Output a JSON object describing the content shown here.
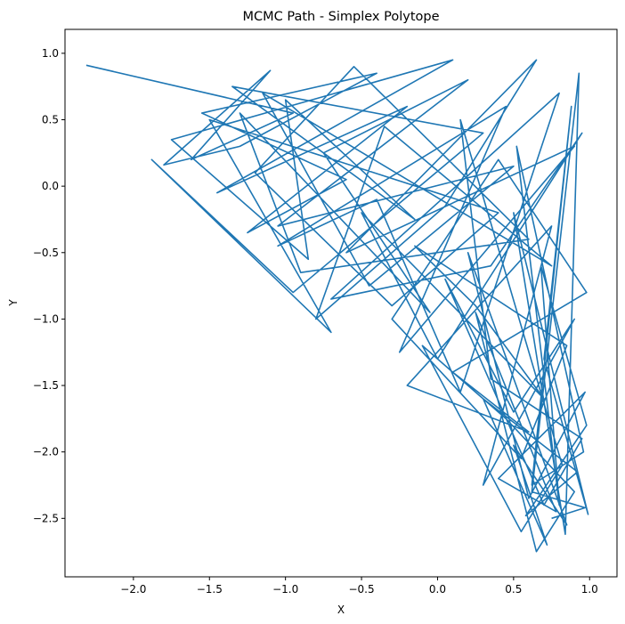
{
  "chart_data": {
    "type": "line",
    "title": "MCMC Path - Simplex Polytope",
    "xlabel": "X",
    "ylabel": "Y",
    "xlim": [
      -2.45,
      1.18
    ],
    "ylim": [
      -2.94,
      1.18
    ],
    "xticks": [
      -2.0,
      -1.5,
      -1.0,
      -0.5,
      0.0,
      0.5,
      1.0
    ],
    "xtick_labels": [
      "−2.0",
      "−1.5",
      "−1.0",
      "−0.5",
      "0.0",
      "0.5",
      "1.0"
    ],
    "yticks": [
      1.0,
      0.5,
      0.0,
      -0.5,
      -1.0,
      -1.5,
      -2.0,
      -2.5
    ],
    "ytick_labels": [
      "1.0",
      "0.5",
      "0.0",
      "−0.5",
      "−1.0",
      "−1.5",
      "−2.0",
      "−2.5"
    ],
    "grid": false,
    "series": [
      {
        "color": "#1f77b4",
        "x": [
          -2.31,
          -0.95,
          -1.62,
          -1.1,
          -1.8,
          -1.3,
          -0.4,
          -1.55,
          -0.6,
          -1.25,
          -0.2,
          -1.45,
          0.1,
          -1.75,
          -0.85,
          -1.0,
          -0.15,
          -1.35,
          0.3,
          -0.95,
          -1.88,
          -0.7,
          -1.5,
          0.4,
          -0.3,
          -1.2,
          -0.55,
          0.6,
          -0.9,
          -1.3,
          -0.05,
          -0.75,
          0.2,
          -1.05,
          0.5,
          -0.45,
          -1.15,
          0.75,
          -0.35,
          -0.8,
          0.05,
          0.65,
          -0.6,
          0.9,
          -0.25,
          0.45,
          -1.05,
          -0.4,
          0.15,
          0.8,
          -0.7,
          0.35,
          0.95,
          0.0,
          -0.5,
          0.7,
          0.25,
          -0.15,
          0.85,
          0.55,
          -0.3,
          0.4,
          0.98,
          0.1,
          0.6,
          -0.2,
          0.75,
          0.3,
          0.9,
          0.5,
          0.05,
          0.7,
          0.95,
          0.35,
          0.15,
          0.82,
          0.55,
          -0.1,
          0.45,
          0.9,
          0.65,
          0.25,
          0.78,
          0.4,
          0.97,
          0.6,
          0.2,
          0.85,
          0.5,
          0.72,
          0.3,
          0.92,
          0.58,
          0.98,
          0.68,
          0.8,
          0.52,
          0.96,
          0.62,
          0.88,
          0.7,
          0.99,
          0.5,
          0.84,
          0.93,
          0.62,
          0.97,
          0.75
        ],
        "y": [
          0.91,
          0.55,
          0.2,
          0.87,
          0.16,
          0.3,
          0.85,
          0.55,
          0.05,
          -0.35,
          0.6,
          -0.05,
          0.95,
          0.35,
          -0.55,
          0.65,
          -0.25,
          0.75,
          0.4,
          -0.8,
          0.2,
          -1.1,
          0.5,
          -0.2,
          -0.9,
          0.1,
          0.9,
          -0.4,
          -0.65,
          0.55,
          -0.95,
          0.25,
          0.8,
          -0.3,
          0.15,
          -0.75,
          0.7,
          -0.6,
          0.45,
          -1.0,
          -0.15,
          0.95,
          -0.5,
          0.3,
          -1.25,
          0.6,
          -0.45,
          -0.1,
          -1.55,
          0.7,
          -0.85,
          -0.6,
          0.4,
          -1.3,
          -0.2,
          -1.6,
          -0.9,
          -0.45,
          -1.2,
          -2.05,
          -1.0,
          0.2,
          -0.8,
          -1.4,
          -1.85,
          -1.5,
          -0.3,
          -2.25,
          -1.0,
          -1.7,
          -0.7,
          -2.4,
          -1.9,
          -1.45,
          0.5,
          -2.1,
          -2.6,
          -1.2,
          -1.75,
          -2.3,
          -2.75,
          -0.95,
          -2.45,
          -2.2,
          -1.55,
          -2.35,
          -0.5,
          -2.55,
          -1.95,
          -2.7,
          -1.6,
          -2.15,
          -2.48,
          -1.8,
          -0.6,
          -2.4,
          0.3,
          -2.0,
          -2.25,
          0.6,
          -1.3,
          -2.47,
          -0.2,
          -2.62,
          0.85,
          -2.3,
          -2.42,
          -2.5
        ]
      }
    ]
  }
}
